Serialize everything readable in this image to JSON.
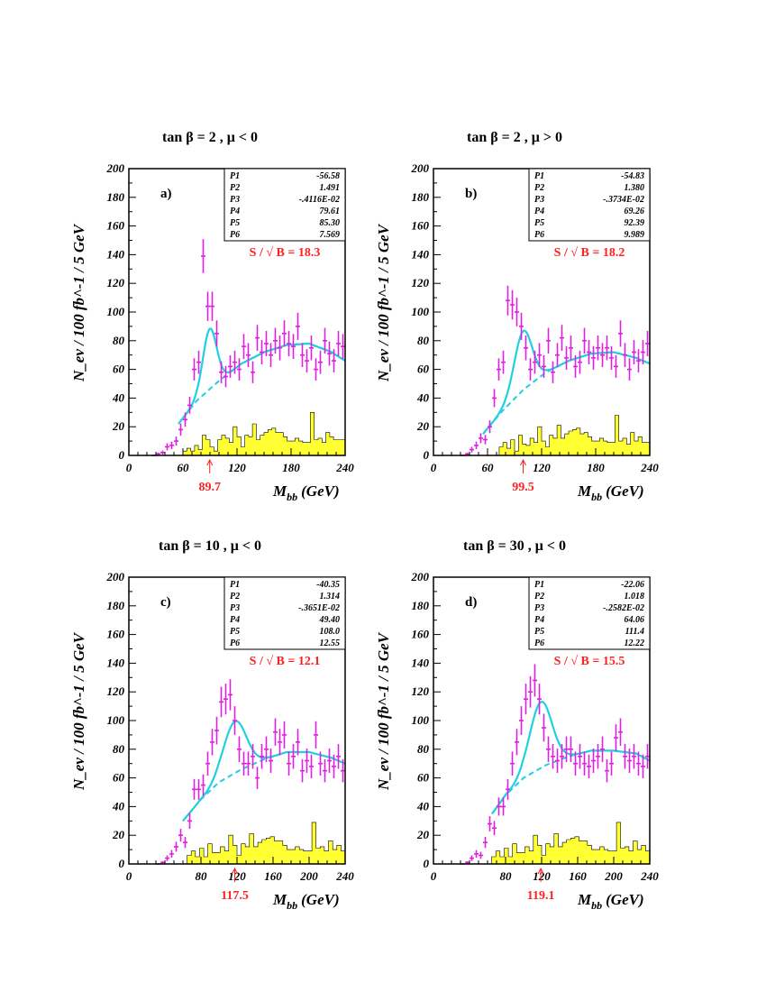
{
  "chart_data": [
    {
      "type": "histogram",
      "title": "tan β = 2 ,  μ < 0",
      "panel_label": "a)",
      "xlabel_main": "M",
      "xlabel_sub": "bb",
      "xlabel_unit": "(GeV)",
      "ylabel": "N_ev / 100 fb^-1 / 5 GeV",
      "xlim": [
        0,
        240
      ],
      "ylim": [
        0,
        200
      ],
      "xticks": [
        0,
        60,
        120,
        180,
        240
      ],
      "yticks": [
        0,
        20,
        40,
        60,
        80,
        100,
        120,
        140,
        160,
        180,
        200
      ],
      "fit_params": [
        {
          "name": "P1",
          "value": "-56.58"
        },
        {
          "name": "P2",
          "value": "1.491"
        },
        {
          "name": "P3",
          "value": "-.4116E-02"
        },
        {
          "name": "P4",
          "value": "79.61"
        },
        {
          "name": "P5",
          "value": "85.30"
        },
        {
          "name": "P6",
          "value": "7.569"
        }
      ],
      "significance": "S / √ B  = 18.3",
      "peak_arrow": {
        "x": 89.7,
        "label": "89.7"
      },
      "data_points": {
        "x": [
          27.5,
          32.5,
          37.5,
          42.5,
          47.5,
          52.5,
          57.5,
          62.5,
          67.5,
          72.5,
          77.5,
          82.5,
          87.5,
          92.5,
          97.5,
          102.5,
          107.5,
          112.5,
          117.5,
          122.5,
          127.5,
          132.5,
          137.5,
          142.5,
          147.5,
          152.5,
          157.5,
          162.5,
          167.5,
          172.5,
          177.5,
          182.5,
          187.5,
          192.5,
          197.5,
          202.5,
          207.5,
          212.5,
          217.5,
          222.5,
          227.5,
          232.5,
          237.5
        ],
        "y": [
          0,
          1,
          2,
          6,
          7,
          10,
          18,
          25,
          35,
          60,
          65,
          139,
          104,
          104,
          85,
          58,
          55,
          62,
          65,
          60,
          76,
          70,
          58,
          82,
          72,
          78,
          70,
          80,
          75,
          85,
          78,
          76,
          90,
          70,
          66,
          75,
          60,
          65,
          80,
          71,
          66,
          78,
          76
        ]
      },
      "signal_fit": {
        "amplitude": 42,
        "mean": 89.7,
        "sigma": 7.569
      },
      "background_fit": {
        "x": [
          55,
          75,
          100,
          125,
          150,
          175,
          200,
          225,
          240
        ],
        "y": [
          22,
          38,
          52,
          64,
          72,
          77,
          78,
          72,
          66
        ]
      },
      "background_hist": [
        0,
        0,
        0,
        0,
        0,
        0,
        0,
        0,
        0,
        0,
        0,
        0,
        0,
        0,
        3,
        5,
        3,
        7,
        4,
        14,
        11,
        6,
        3,
        11,
        14,
        12,
        9,
        20,
        13,
        6,
        14,
        13,
        22,
        11,
        14,
        16,
        18,
        19,
        16,
        16,
        13,
        10,
        10,
        12,
        10,
        9,
        9,
        30,
        11,
        12,
        9,
        16,
        13,
        11,
        11,
        11
      ]
    },
    {
      "type": "histogram",
      "title": "tan β = 2 ,  μ > 0",
      "panel_label": "b)",
      "xlabel_main": "M",
      "xlabel_sub": "bb",
      "xlabel_unit": "(GeV)",
      "ylabel": "N_ev / 100 fb^-1 / 5 GeV",
      "xlim": [
        0,
        240
      ],
      "ylim": [
        0,
        200
      ],
      "xticks": [
        0,
        60,
        120,
        180,
        240
      ],
      "yticks": [
        0,
        20,
        40,
        60,
        80,
        100,
        120,
        140,
        160,
        180,
        200
      ],
      "fit_params": [
        {
          "name": "P1",
          "value": "-54.83"
        },
        {
          "name": "P2",
          "value": "1.380"
        },
        {
          "name": "P3",
          "value": "-.3734E-02"
        },
        {
          "name": "P4",
          "value": "69.26"
        },
        {
          "name": "P5",
          "value": "92.39"
        },
        {
          "name": "P6",
          "value": "9.989"
        }
      ],
      "significance": "S / √ B  = 18.2",
      "peak_arrow": {
        "x": 99.5,
        "label": "99.5"
      },
      "data_points": {
        "x": [
          32.5,
          37.5,
          42.5,
          47.5,
          52.5,
          57.5,
          62.5,
          67.5,
          72.5,
          77.5,
          82.5,
          87.5,
          92.5,
          97.5,
          102.5,
          107.5,
          112.5,
          117.5,
          122.5,
          127.5,
          132.5,
          137.5,
          142.5,
          147.5,
          152.5,
          157.5,
          162.5,
          167.5,
          172.5,
          177.5,
          182.5,
          187.5,
          192.5,
          197.5,
          202.5,
          207.5,
          212.5,
          217.5,
          222.5,
          227.5,
          232.5,
          237.5
        ],
        "y": [
          0,
          1,
          4,
          7,
          12,
          11,
          20,
          40,
          60,
          65,
          108,
          105,
          100,
          90,
          75,
          60,
          65,
          70,
          62,
          80,
          58,
          70,
          82,
          68,
          75,
          62,
          65,
          80,
          72,
          68,
          75,
          70,
          75,
          68,
          62,
          85,
          70,
          60,
          72,
          66,
          72,
          78
        ]
      },
      "signal_fit": {
        "amplitude": 41,
        "mean": 99.5,
        "sigma": 9.989
      },
      "background_fit": {
        "x": [
          55,
          75,
          100,
          125,
          150,
          175,
          200,
          225,
          240
        ],
        "y": [
          15,
          30,
          46,
          58,
          66,
          71,
          72,
          68,
          64
        ]
      },
      "background_hist": [
        0,
        0,
        0,
        0,
        0,
        0,
        0,
        0,
        0,
        0,
        0,
        0,
        0,
        0,
        0,
        0,
        0,
        6,
        9,
        5,
        11,
        3,
        14,
        8,
        7,
        12,
        9,
        20,
        10,
        6,
        14,
        12,
        21,
        12,
        15,
        17,
        18,
        19,
        15,
        16,
        13,
        10,
        10,
        12,
        10,
        9,
        9,
        28,
        10,
        12,
        8,
        16,
        10,
        13,
        9,
        9
      ]
    },
    {
      "type": "histogram",
      "title": "tan β = 10 ,  μ < 0",
      "panel_label": "c)",
      "xlabel_main": "M",
      "xlabel_sub": "bb",
      "xlabel_unit": "(GeV)",
      "ylabel": "N_ev / 100 fb^-1 / 5 GeV",
      "xlim": [
        0,
        240
      ],
      "ylim": [
        0,
        200
      ],
      "xticks": [
        0,
        80,
        120,
        160,
        200,
        240
      ],
      "yticks": [
        0,
        20,
        40,
        60,
        80,
        100,
        120,
        140,
        160,
        180,
        200
      ],
      "fit_params": [
        {
          "name": "P1",
          "value": "-40.35"
        },
        {
          "name": "P2",
          "value": "1.314"
        },
        {
          "name": "P3",
          "value": "-.3651E-02"
        },
        {
          "name": "P4",
          "value": "49.40"
        },
        {
          "name": "P5",
          "value": "108.0"
        },
        {
          "name": "P6",
          "value": "12.55"
        }
      ],
      "significance": "S / √ B  = 12.1",
      "peak_arrow": {
        "x": 117.5,
        "label": "117.5"
      },
      "data_points": {
        "x": [
          32.5,
          37.5,
          42.5,
          47.5,
          52.5,
          57.5,
          62.5,
          67.5,
          72.5,
          77.5,
          82.5,
          87.5,
          92.5,
          97.5,
          102.5,
          107.5,
          112.5,
          117.5,
          122.5,
          127.5,
          132.5,
          137.5,
          142.5,
          147.5,
          152.5,
          157.5,
          162.5,
          167.5,
          172.5,
          177.5,
          182.5,
          187.5,
          192.5,
          197.5,
          202.5,
          207.5,
          212.5,
          217.5,
          222.5,
          227.5,
          232.5,
          237.5
        ],
        "y": [
          0,
          1,
          4,
          7,
          12,
          20,
          15,
          30,
          52,
          52,
          55,
          70,
          85,
          93,
          113,
          115,
          118,
          100,
          80,
          70,
          70,
          75,
          60,
          75,
          80,
          72,
          92,
          85,
          90,
          70,
          75,
          85,
          65,
          72,
          68,
          90,
          70,
          65,
          72,
          68,
          75,
          65
        ]
      },
      "signal_fit": {
        "amplitude": 36,
        "mean": 117.5,
        "sigma": 12.55
      },
      "background_fit": {
        "x": [
          60,
          80,
          100,
          125,
          150,
          175,
          200,
          225,
          240
        ],
        "y": [
          30,
          45,
          57,
          66,
          73,
          78,
          78,
          74,
          70
        ]
      },
      "background_hist": [
        0,
        0,
        0,
        0,
        0,
        0,
        0,
        0,
        0,
        0,
        0,
        0,
        0,
        0,
        6,
        9,
        5,
        11,
        5,
        14,
        8,
        8,
        12,
        9,
        20,
        13,
        6,
        14,
        12,
        21,
        12,
        15,
        17,
        18,
        19,
        16,
        16,
        13,
        10,
        10,
        12,
        10,
        9,
        9,
        29,
        11,
        12,
        9,
        16,
        10,
        13,
        9
      ]
    },
    {
      "type": "histogram",
      "title": "tan β = 30 ,  μ < 0",
      "panel_label": "d)",
      "xlabel_main": "M",
      "xlabel_sub": "bb",
      "xlabel_unit": "(GeV)",
      "ylabel": "N_ev / 100 fb^-1 / 5 GeV",
      "xlim": [
        0,
        240
      ],
      "ylim": [
        0,
        200
      ],
      "xticks": [
        0,
        80,
        120,
        160,
        200,
        240
      ],
      "yticks": [
        0,
        20,
        40,
        60,
        80,
        100,
        120,
        140,
        160,
        180,
        200
      ],
      "fit_params": [
        {
          "name": "P1",
          "value": "-22.06"
        },
        {
          "name": "P2",
          "value": "1.018"
        },
        {
          "name": "P3",
          "value": "-.2582E-02"
        },
        {
          "name": "P4",
          "value": "64.06"
        },
        {
          "name": "P5",
          "value": "111.4"
        },
        {
          "name": "P6",
          "value": "12.22"
        }
      ],
      "significance": "S / √ B  = 15.5",
      "peak_arrow": {
        "x": 119.1,
        "label": "119.1"
      },
      "data_points": {
        "x": [
          32.5,
          37.5,
          42.5,
          47.5,
          52.5,
          57.5,
          62.5,
          67.5,
          72.5,
          77.5,
          82.5,
          87.5,
          92.5,
          97.5,
          102.5,
          107.5,
          112.5,
          117.5,
          122.5,
          127.5,
          132.5,
          137.5,
          142.5,
          147.5,
          152.5,
          157.5,
          162.5,
          167.5,
          172.5,
          177.5,
          182.5,
          187.5,
          192.5,
          197.5,
          202.5,
          207.5,
          212.5,
          217.5,
          222.5,
          227.5,
          232.5,
          237.5
        ],
        "y": [
          0,
          1,
          4,
          7,
          6,
          15,
          28,
          25,
          40,
          40,
          52,
          70,
          85,
          100,
          115,
          120,
          128,
          115,
          95,
          80,
          75,
          72,
          75,
          80,
          80,
          70,
          75,
          70,
          68,
          72,
          75,
          80,
          65,
          70,
          88,
          92,
          75,
          72,
          75,
          70,
          68,
          75
        ]
      },
      "signal_fit": {
        "amplitude": 46,
        "mean": 119.1,
        "sigma": 12.22
      },
      "background_fit": {
        "x": [
          65,
          80,
          100,
          125,
          150,
          175,
          200,
          225,
          240
        ],
        "y": [
          35,
          48,
          60,
          69,
          75,
          79,
          79,
          77,
          72
        ]
      },
      "background_hist": [
        0,
        0,
        0,
        0,
        0,
        0,
        0,
        0,
        0,
        0,
        0,
        0,
        0,
        0,
        5,
        9,
        5,
        11,
        5,
        14,
        8,
        8,
        12,
        9,
        20,
        13,
        6,
        14,
        12,
        21,
        12,
        15,
        17,
        18,
        19,
        16,
        16,
        13,
        10,
        10,
        12,
        10,
        9,
        9,
        29,
        11,
        12,
        9,
        16,
        10,
        13,
        9
      ]
    }
  ],
  "colors": {
    "data_points": "#e020e0",
    "fit_line": "#20d0e0",
    "background_fill": "#ffff33",
    "annotation_red": "#ff2020",
    "axes": "#000000"
  }
}
